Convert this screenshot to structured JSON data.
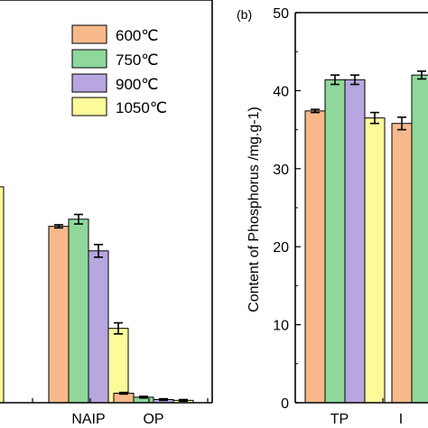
{
  "colors": {
    "600": "#f7b98b",
    "750": "#8fd79b",
    "900": "#b7a6df",
    "1050": "#fbfb9a",
    "axis": "#000000"
  },
  "chart_data": [
    {
      "panel_label": "",
      "type": "bar",
      "categories": [
        "NAIP",
        "OP"
      ],
      "series": [
        {
          "name": "600℃",
          "values": [
            22.3,
            1.2
          ],
          "errors": [
            0.2,
            0.1
          ]
        },
        {
          "name": "750℃",
          "values": [
            23.2,
            0.7
          ],
          "errors": [
            0.6,
            0.1
          ]
        },
        {
          "name": "900℃",
          "values": [
            19.2,
            0.4
          ],
          "errors": [
            0.8,
            0.1
          ]
        },
        {
          "name": "1050℃",
          "values": [
            9.4,
            0.3
          ],
          "errors": [
            0.7,
            0.1
          ]
        }
      ],
      "partial_left_bar_value": 27.3,
      "x_tick_labels": [
        "NAIP",
        "OP"
      ],
      "legend": {
        "position": "top-right",
        "entries": [
          "600℃",
          "750℃",
          "900℃",
          "1050℃"
        ]
      }
    },
    {
      "panel_label": "(b)",
      "type": "bar",
      "categories": [
        "TP",
        "I"
      ],
      "series": [
        {
          "name": "600℃",
          "values": [
            37.4,
            35.8
          ],
          "errors": [
            0.2,
            0.8
          ]
        },
        {
          "name": "750℃",
          "values": [
            41.4,
            42.0
          ],
          "errors": [
            0.6,
            0.5
          ]
        },
        {
          "name": "900℃",
          "values": [
            41.4,
            null
          ],
          "errors": [
            0.6,
            null
          ]
        },
        {
          "name": "1050℃",
          "values": [
            36.5,
            null
          ],
          "errors": [
            0.7,
            null
          ]
        }
      ],
      "ylabel": "Content of Phosphorus /mg.g-1)",
      "ylim": [
        0,
        50
      ],
      "yticks": [
        "0",
        "10",
        "20",
        "30",
        "40",
        "50"
      ],
      "x_tick_labels": [
        "TP",
        "I"
      ]
    }
  ]
}
